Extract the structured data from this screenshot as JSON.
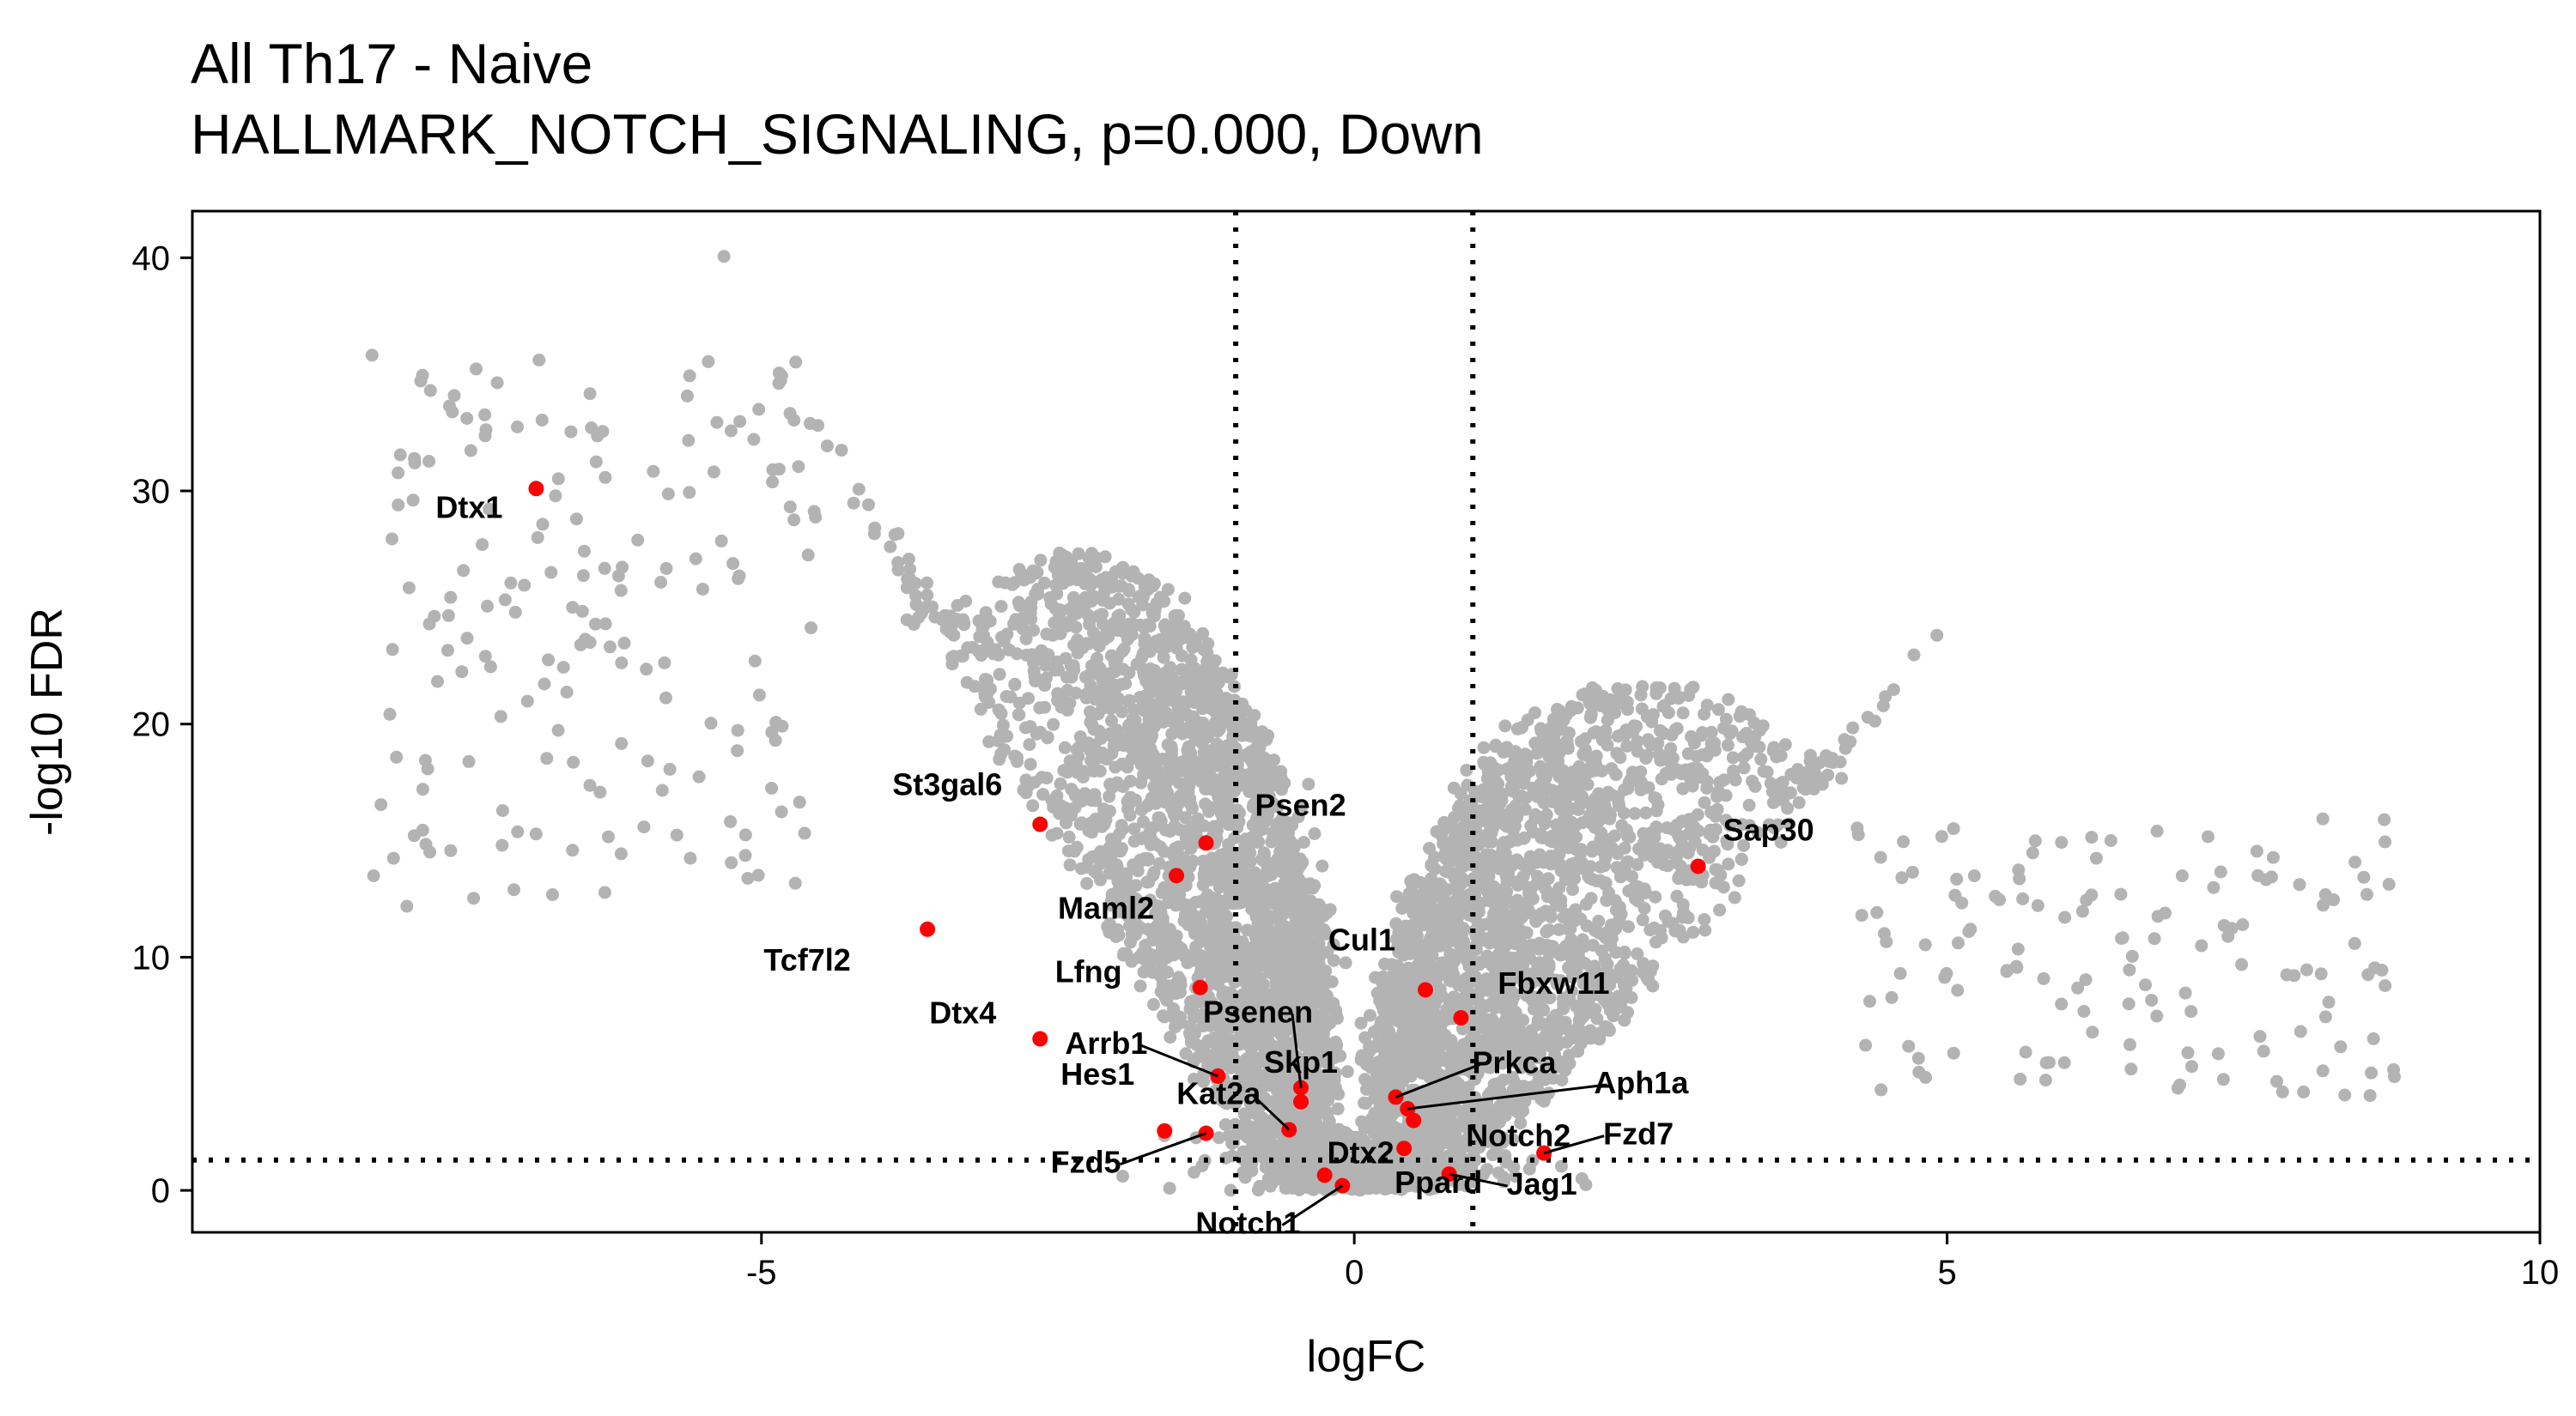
{
  "chart_data": {
    "type": "scatter",
    "title": "All Th17 - Naive",
    "subtitle": "HALLMARK_NOTCH_SIGNALING, p=0.000, Down",
    "xlabel": "logFC",
    "ylabel": "-log10 FDR",
    "xlim": [
      -9.8,
      10
    ],
    "ylim": [
      -1.8,
      42
    ],
    "xticks": [
      -5,
      0,
      5,
      10
    ],
    "xtick_labels": [
      "-5",
      "0",
      "5",
      "10"
    ],
    "yticks": [
      0,
      10,
      20,
      30,
      40
    ],
    "ytick_labels": [
      "0",
      "10",
      "20",
      "30",
      "40"
    ],
    "thresholds": {
      "logFC": [
        -1,
        1
      ],
      "neg_log10_fdr": 1.3
    },
    "grid": false,
    "colors": {
      "background_genes": "#b3b3b3",
      "highlighted_genes": "#ff0000"
    },
    "highlighted_genes": [
      {
        "gene": "Dtx1",
        "x": -6.9,
        "y": 30.1
      },
      {
        "gene": "St3gal6",
        "x": -2.65,
        "y": 15.7
      },
      {
        "gene": "Psen2",
        "x": -1.25,
        "y": 14.9
      },
      {
        "gene": "Maml2",
        "x": -1.5,
        "y": 13.5
      },
      {
        "gene": "Sap30",
        "x": 2.9,
        "y": 13.9
      },
      {
        "gene": "Tcf7l2",
        "x": -3.6,
        "y": 11.2
      },
      {
        "gene": "Lfng",
        "x": -1.3,
        "y": 8.7
      },
      {
        "gene": "Cul1",
        "x": 0.6,
        "y": 8.6
      },
      {
        "gene": "Fbxw11",
        "x": 0.9,
        "y": 7.4
      },
      {
        "gene": "Dtx4",
        "x": -2.65,
        "y": 6.5
      },
      {
        "gene": "Arrb1",
        "x": -1.15,
        "y": 4.9
      },
      {
        "gene": "Psenen",
        "x": -0.45,
        "y": 4.4
      },
      {
        "gene": "Skp1",
        "x": -0.45,
        "y": 3.8
      },
      {
        "gene": "Prkca",
        "x": 0.35,
        "y": 4.0
      },
      {
        "gene": "Aph1a",
        "x": 0.45,
        "y": 3.5
      },
      {
        "gene": "Notch2",
        "x": 0.5,
        "y": 3.0
      },
      {
        "gene": "Kat2a",
        "x": -0.55,
        "y": 2.6
      },
      {
        "gene": "Hes1",
        "x": -1.6,
        "y": 2.55
      },
      {
        "gene": "Fzd5",
        "x": -1.25,
        "y": 2.45
      },
      {
        "gene": "Dtx2",
        "x": -0.25,
        "y": 0.65
      },
      {
        "gene": "Notch1",
        "x": -0.1,
        "y": 0.2
      },
      {
        "gene": "Ppard",
        "x": 0.42,
        "y": 1.8
      },
      {
        "gene": "Fzd7",
        "x": 1.6,
        "y": 1.6
      },
      {
        "gene": "Jag1",
        "x": 0.8,
        "y": 0.7
      }
    ]
  }
}
